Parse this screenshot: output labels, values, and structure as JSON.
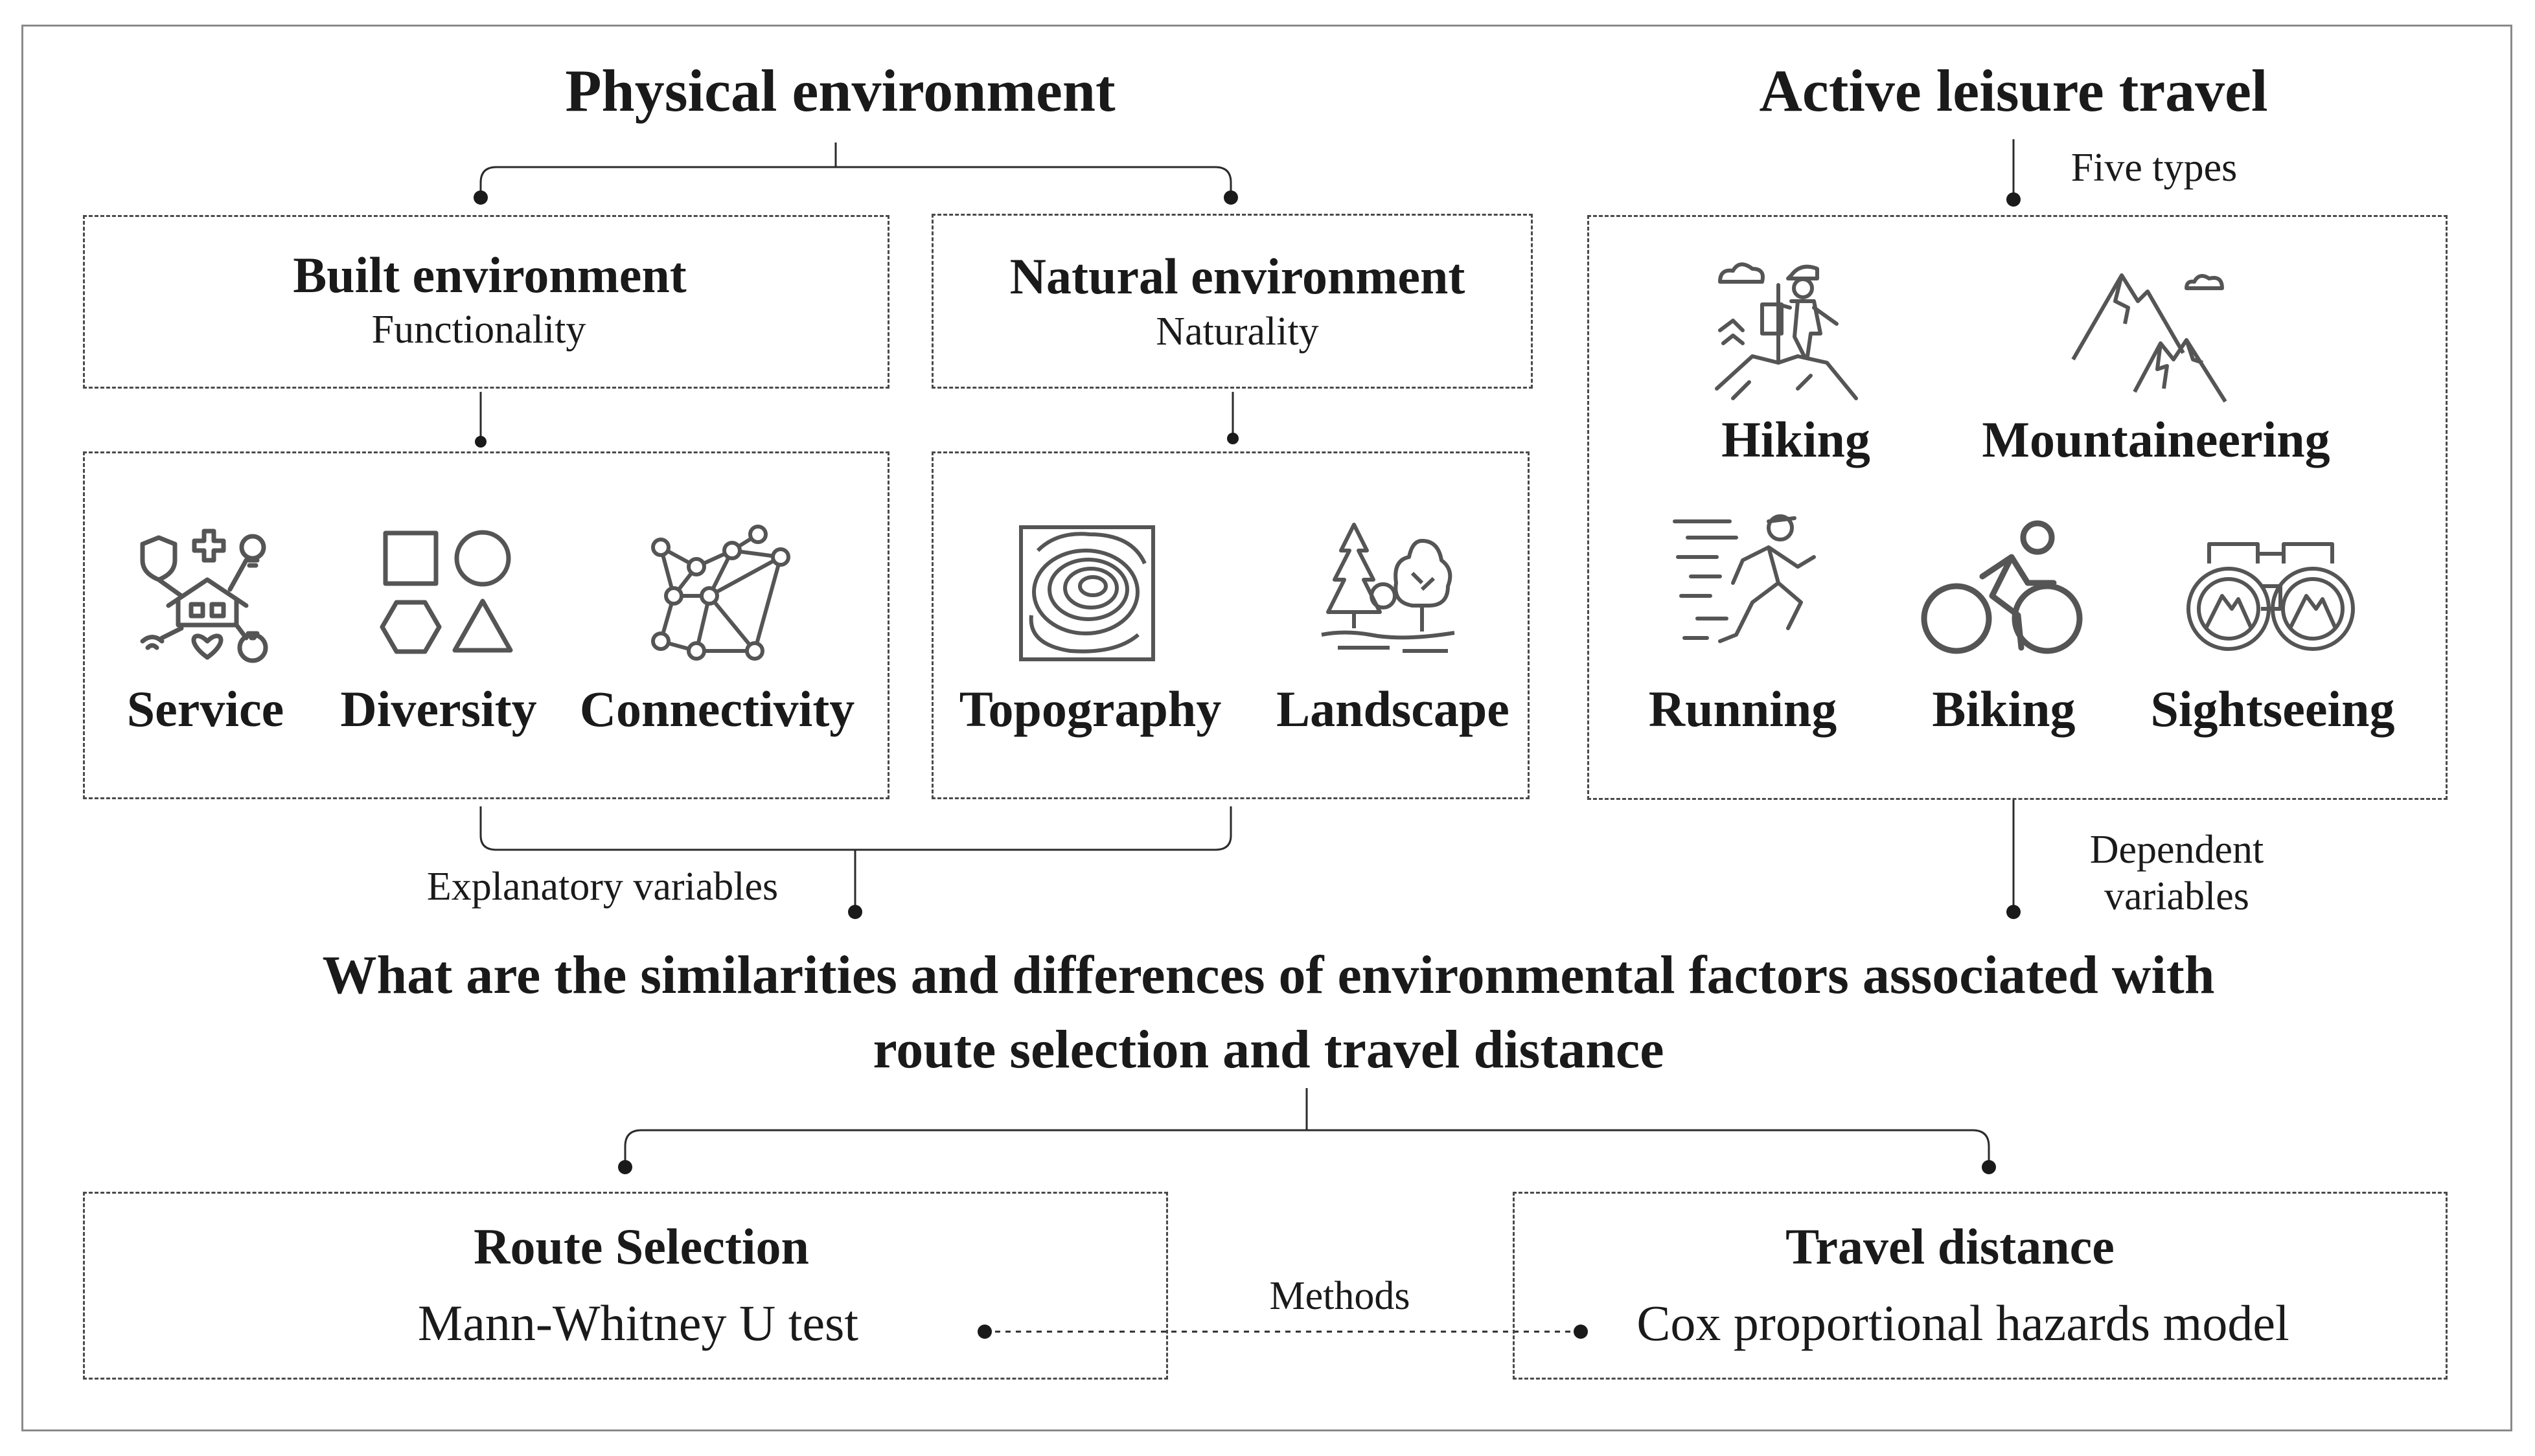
{
  "physical": {
    "title": "Physical environment",
    "built": {
      "title": "Built environment",
      "subtitle": "Functionality"
    },
    "natural": {
      "title": "Natural environment",
      "subtitle": "Naturality"
    },
    "built_factors": [
      {
        "label": "Service",
        "icon": "service-icon"
      },
      {
        "label": "Diversity",
        "icon": "diversity-icon"
      },
      {
        "label": "Connectivity",
        "icon": "connectivity-icon"
      }
    ],
    "natural_factors": [
      {
        "label": "Topography",
        "icon": "topography-icon"
      },
      {
        "label": "Landscape",
        "icon": "landscape-icon"
      }
    ],
    "explanatory_label": "Explanatory variables"
  },
  "active": {
    "title": "Active leisure travel",
    "types_label": "Five types",
    "types": [
      {
        "label": "Hiking",
        "icon": "hiking-icon"
      },
      {
        "label": "Mountaineering",
        "icon": "mountains-icon"
      },
      {
        "label": "Running",
        "icon": "running-icon"
      },
      {
        "label": "Biking",
        "icon": "biking-icon"
      },
      {
        "label": "Sightseeing",
        "icon": "binoculars-icon"
      }
    ],
    "dependent_label_line1": "Dependent",
    "dependent_label_line2": "variables"
  },
  "question": {
    "line1": "What are the similarities and differences of environmental factors associated with",
    "line2": "route selection and travel distance"
  },
  "methods": {
    "label": "Methods",
    "route": {
      "title": "Route Selection",
      "method": "Mann-Whitney U test"
    },
    "distance": {
      "title": "Travel distance",
      "method": "Cox proportional hazards model"
    }
  },
  "colors": {
    "line": "#2b2b2b",
    "dashed_border": "#4a4a4a",
    "icon": "#555555",
    "frame": "#8a8a8a"
  }
}
